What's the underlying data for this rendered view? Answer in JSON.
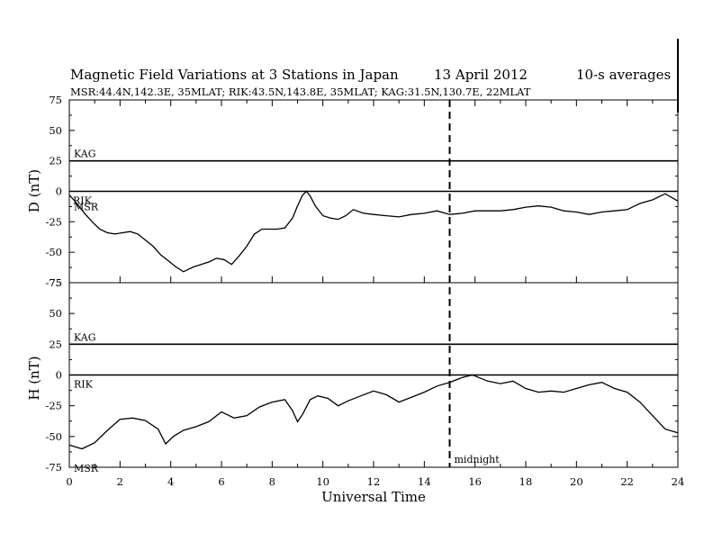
{
  "header": {
    "title": "Magnetic Field Variations at 3 Stations in Japan",
    "date": "13  April    2012",
    "averaging": "10-s averages",
    "stations_line": "MSR:44.4N,142.3E, 35MLAT;  RIK:43.5N,143.8E, 35MLAT;  KAG:31.5N,130.7E, 22MLAT"
  },
  "chart_data": [
    {
      "type": "line",
      "panel": "D",
      "ylabel": "D (nT)",
      "ylim": [
        -75,
        75
      ],
      "yticks": [
        75,
        50,
        25,
        0,
        -25,
        -50,
        -75
      ],
      "xlim": [
        0,
        24
      ],
      "series": [
        {
          "name": "KAG",
          "x": [
            0,
            24
          ],
          "values": [
            25,
            25
          ]
        },
        {
          "name": "RIK",
          "x": [
            0,
            24
          ],
          "values": [
            0,
            0
          ]
        },
        {
          "name": "MSR",
          "x": [
            0,
            0.3,
            0.6,
            0.9,
            1.2,
            1.5,
            1.8,
            2.1,
            2.4,
            2.7,
            3.0,
            3.3,
            3.6,
            3.9,
            4.2,
            4.5,
            4.7,
            4.9,
            5.2,
            5.5,
            5.8,
            6.1,
            6.4,
            6.7,
            7.0,
            7.3,
            7.6,
            7.9,
            8.2,
            8.5,
            8.8,
            9.0,
            9.2,
            9.35,
            9.5,
            9.7,
            10.0,
            10.3,
            10.6,
            10.9,
            11.2,
            11.6,
            12.0,
            12.5,
            13.0,
            13.5,
            14.0,
            14.5,
            15.0,
            15.5,
            16.0,
            16.5,
            17.0,
            17.5,
            18.0,
            18.5,
            19.0,
            19.5,
            20.0,
            20.5,
            21.0,
            21.5,
            22.0,
            22.5,
            23.0,
            23.5,
            24.0
          ],
          "values": [
            -3,
            -10,
            -18,
            -25,
            -31,
            -34,
            -35,
            -34,
            -33,
            -35,
            -40,
            -45,
            -52,
            -57,
            -62,
            -66,
            -64,
            -62,
            -60,
            -58,
            -55,
            -56,
            -60,
            -53,
            -45,
            -35,
            -31,
            -31,
            -31,
            -30,
            -22,
            -12,
            -3,
            0,
            -4,
            -12,
            -20,
            -22,
            -23,
            -20,
            -15,
            -18,
            -19,
            -20,
            -21,
            -19,
            -18,
            -16,
            -19,
            -18,
            -16,
            -16,
            -16,
            -15,
            -13,
            -12,
            -13,
            -16,
            -17,
            -19,
            -17,
            -16,
            -15,
            -10,
            -7,
            -2,
            -8
          ]
        }
      ]
    },
    {
      "type": "line",
      "panel": "H",
      "ylabel": "H (nT)",
      "ylim": [
        -75,
        75
      ],
      "yticks": [
        75,
        50,
        25,
        0,
        -25,
        -50,
        -75
      ],
      "xlim": [
        0,
        24
      ],
      "xticks": [
        0,
        2,
        4,
        6,
        8,
        10,
        12,
        14,
        16,
        18,
        20,
        22,
        24
      ],
      "xlabel": "Universal Time",
      "series": [
        {
          "name": "KAG",
          "x": [
            0,
            24
          ],
          "values": [
            25,
            25
          ]
        },
        {
          "name": "RIK",
          "x": [
            0,
            24
          ],
          "values": [
            0,
            0
          ]
        },
        {
          "name": "MSR",
          "x": [
            0,
            0.5,
            1.0,
            1.5,
            2.0,
            2.5,
            3.0,
            3.5,
            3.8,
            4.1,
            4.5,
            5.0,
            5.5,
            6.0,
            6.5,
            7.0,
            7.5,
            8.0,
            8.5,
            8.8,
            9.0,
            9.2,
            9.5,
            9.8,
            10.2,
            10.6,
            11.0,
            11.5,
            12.0,
            12.5,
            13.0,
            13.5,
            14.0,
            14.5,
            15.0,
            15.5,
            15.9,
            16.5,
            17.0,
            17.5,
            18.0,
            18.5,
            19.0,
            19.5,
            20.0,
            20.5,
            21.0,
            21.5,
            22.0,
            22.5,
            23.0,
            23.5,
            24.0
          ],
          "values": [
            -57,
            -60,
            -55,
            -45,
            -36,
            -35,
            -37,
            -44,
            -56,
            -50,
            -45,
            -42,
            -38,
            -30,
            -35,
            -33,
            -26,
            -22,
            -20,
            -29,
            -38,
            -32,
            -20,
            -17,
            -19,
            -25,
            -21,
            -17,
            -13,
            -16,
            -22,
            -18,
            -14,
            -9,
            -6,
            -2,
            0,
            -5,
            -7,
            -5,
            -11,
            -14,
            -13,
            -14,
            -11,
            -8,
            -6,
            -11,
            -14,
            -22,
            -33,
            -44,
            -47
          ]
        }
      ]
    }
  ],
  "annotations": {
    "midnight_label": "midnight",
    "midnight_ut": 15
  }
}
